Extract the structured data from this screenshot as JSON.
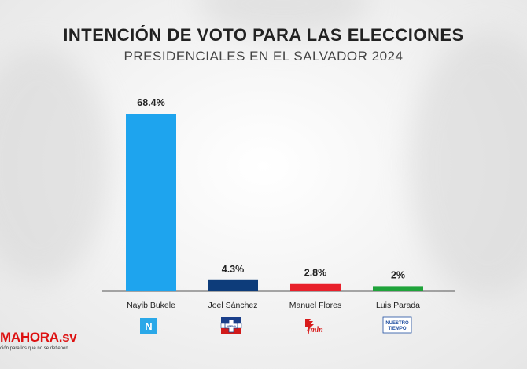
{
  "header": {
    "title": "INTENCIÓN DE VOTO PARA LAS ELECCIONES",
    "subtitle": "PRESIDENCIALES EN EL SALVADOR 2024"
  },
  "brand": {
    "name": "MAHORA.sv",
    "tagline": "ción para los que no se detienen",
    "color": "#d81c1c"
  },
  "party_logos": [
    {
      "name": "nuevas-ideas-logo",
      "text": "N",
      "color": "#2aa8e8"
    },
    {
      "name": "arena-logo",
      "text": "ARENA",
      "colors": [
        "#1a3f8a",
        "#d11a1a"
      ]
    },
    {
      "name": "fmln-logo",
      "text": "fmln",
      "color": "#d81c1c"
    },
    {
      "name": "nuestro-tiempo-logo",
      "text": "NUESTRO TIEMPO",
      "color": "#1f4ea0"
    }
  ],
  "chart_data": {
    "type": "bar",
    "title": "INTENCIÓN DE VOTO PARA LAS ELECCIONES",
    "subtitle": "PRESIDENCIALES EN EL SALVADOR 2024",
    "categories": [
      "Nayib Bukele",
      "Joel Sánchez",
      "Manuel Flores",
      "Luis Parada"
    ],
    "values": [
      68.4,
      4.3,
      2.8,
      2
    ],
    "labels": [
      "68.4%",
      "4.3%",
      "2.8%",
      "2%"
    ],
    "colors": [
      "#1ea4ee",
      "#0d3c7a",
      "#e8202a",
      "#1fa33a"
    ],
    "xlabel": "",
    "ylabel": "",
    "ylim": [
      0,
      70
    ],
    "grid": false,
    "legend": "none"
  }
}
